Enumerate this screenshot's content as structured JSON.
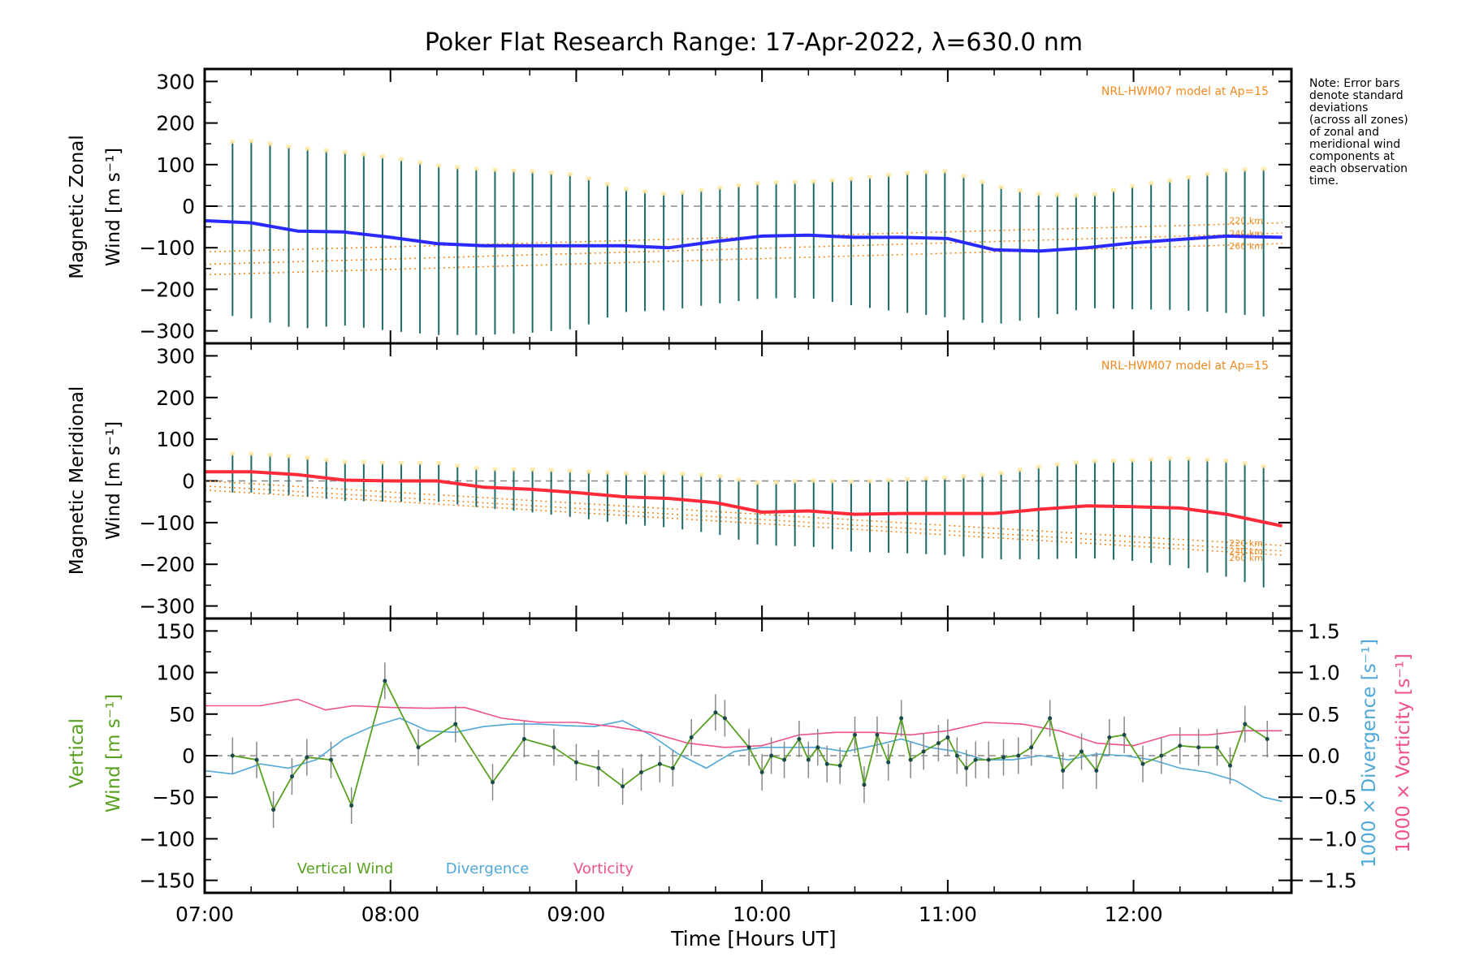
{
  "title": "Poker Flat Research Range: 17-Apr-2022, λ=630.0 nm",
  "note": [
    "Note: Error bars",
    "denote standard",
    "deviations",
    "(across all zones)",
    "of zonal and",
    "meridional wind",
    "components at",
    "each observation",
    "time."
  ],
  "xlabel": "Time [Hours UT]",
  "xticks": [
    "07:00",
    "08:00",
    "09:00",
    "10:00",
    "11:00",
    "12:00"
  ],
  "colors": {
    "zonal": "#2a2aff",
    "meridional": "#ff2a3a",
    "vertical": "#58a020",
    "divergence": "#50a8d8",
    "vorticity": "#f0508c",
    "model": "#f08a20",
    "error": "#1e6a6a"
  },
  "chart_data": [
    {
      "type": "line",
      "panel": "zonal",
      "ylabel_line1": "Magnetic Zonal",
      "ylabel_line2": "Wind [m s⁻¹]",
      "ylim": [
        -330,
        330
      ],
      "yticks": [
        "300",
        "200",
        "100",
        "0",
        "−100",
        "−200",
        "−300"
      ],
      "model_label": "NRL-HWM07 model at Ap=15",
      "model_alt_labels": [
        "220 km",
        "240 km",
        "260 km"
      ],
      "model_series": [
        {
          "name": "220 km",
          "x": [
            7.0,
            12.8
          ],
          "values": [
            -110,
            -40
          ]
        },
        {
          "name": "240 km",
          "x": [
            7.0,
            12.8
          ],
          "values": [
            -140,
            -65
          ]
        },
        {
          "name": "260 km",
          "x": [
            7.0,
            12.8
          ],
          "values": [
            -165,
            -90
          ]
        }
      ],
      "x": [
        7.0,
        7.25,
        7.5,
        7.75,
        8.0,
        8.25,
        8.5,
        8.75,
        9.0,
        9.25,
        9.5,
        9.75,
        10.0,
        10.25,
        10.5,
        10.75,
        11.0,
        11.25,
        11.5,
        11.75,
        12.0,
        12.25,
        12.5,
        12.8
      ],
      "values": [
        -35,
        -40,
        -60,
        -62,
        -75,
        -90,
        -95,
        -95,
        -95,
        -95,
        -100,
        -85,
        -72,
        -70,
        -75,
        -75,
        -78,
        -105,
        -108,
        -100,
        -88,
        -80,
        -72,
        -75
      ],
      "error": [
        220,
        230,
        235,
        225,
        225,
        220,
        215,
        210,
        200,
        160,
        150,
        150,
        150,
        150,
        165,
        180,
        190,
        180,
        160,
        145,
        160,
        170,
        185,
        195
      ],
      "error_x_range": [
        7.15,
        12.7
      ],
      "error_count": 56
    },
    {
      "type": "line",
      "panel": "meridional",
      "ylabel_line1": "Magnetic Meridional",
      "ylabel_line2": "Wind [m s⁻¹]",
      "ylim": [
        -330,
        330
      ],
      "yticks": [
        "300",
        "200",
        "100",
        "0",
        "−100",
        "−200",
        "−300"
      ],
      "model_label": "NRL-HWM07 model at Ap=15",
      "model_alt_labels": [
        "220 km",
        "240 km",
        "260 km"
      ],
      "model_series": [
        {
          "name": "220 km",
          "x": [
            7.0,
            12.8
          ],
          "values": [
            0,
            -155
          ]
        },
        {
          "name": "240 km",
          "x": [
            7.0,
            12.8
          ],
          "values": [
            -12,
            -168
          ]
        },
        {
          "name": "260 km",
          "x": [
            7.0,
            12.8
          ],
          "values": [
            -22,
            -178
          ]
        }
      ],
      "x": [
        7.0,
        7.25,
        7.5,
        7.75,
        8.0,
        8.25,
        8.5,
        8.75,
        9.0,
        9.25,
        9.5,
        9.75,
        10.0,
        10.25,
        10.5,
        10.75,
        11.0,
        11.25,
        11.5,
        11.75,
        12.0,
        12.25,
        12.5,
        12.8
      ],
      "values": [
        22,
        22,
        15,
        2,
        0,
        0,
        -15,
        -20,
        -28,
        -38,
        -42,
        -52,
        -75,
        -72,
        -80,
        -78,
        -78,
        -78,
        -68,
        -60,
        -62,
        -65,
        -80,
        -108
      ],
      "error": [
        50,
        50,
        50,
        50,
        50,
        50,
        50,
        55,
        60,
        65,
        70,
        75,
        80,
        85,
        90,
        95,
        100,
        110,
        120,
        125,
        130,
        140,
        150,
        160
      ],
      "error_x_range": [
        7.15,
        12.7
      ],
      "error_count": 56
    },
    {
      "type": "line",
      "panel": "vertical",
      "ylabel_line1": "Vertical",
      "ylabel_line2": "Wind [m s⁻¹]",
      "ylim": [
        -165,
        165
      ],
      "yticks": [
        "150",
        "100",
        "50",
        "0",
        "−50",
        "−100",
        "−150"
      ],
      "y2_ticks": [
        "1.5",
        "1.0",
        "0.5",
        "0.0",
        "−0.5",
        "−1.0",
        "−1.5"
      ],
      "y2lim": [
        -1.65,
        1.65
      ],
      "y2label_div": "1000 × Divergence [s⁻¹]",
      "y2label_vor": "1000 × Vorticity [s⁻¹]",
      "legend": [
        "Vertical Wind",
        "Divergence",
        "Vorticity"
      ],
      "series": [
        {
          "name": "Vertical Wind",
          "x": [
            7.15,
            7.28,
            7.37,
            7.47,
            7.55,
            7.68,
            7.79,
            7.97,
            8.15,
            8.35,
            8.55,
            8.72,
            8.88,
            9.0,
            9.12,
            9.25,
            9.35,
            9.45,
            9.52,
            9.62,
            9.75,
            9.8,
            9.93,
            10.0,
            10.05,
            10.12,
            10.2,
            10.25,
            10.3,
            10.35,
            10.42,
            10.5,
            10.55,
            10.62,
            10.68,
            10.75,
            10.8,
            10.87,
            10.95,
            11.0,
            11.05,
            11.1,
            11.15,
            11.22,
            11.3,
            11.38,
            11.45,
            11.55,
            11.62,
            11.72,
            11.8,
            11.87,
            11.95,
            12.05,
            12.15,
            12.25,
            12.35,
            12.45,
            12.52,
            12.6,
            12.72
          ],
          "values": [
            0,
            -5,
            -65,
            -25,
            -2,
            -5,
            -60,
            90,
            10,
            38,
            -32,
            20,
            10,
            -8,
            -15,
            -37,
            -20,
            -10,
            -15,
            22,
            52,
            45,
            10,
            -20,
            0,
            -5,
            20,
            -5,
            10,
            -10,
            -12,
            25,
            -35,
            25,
            -8,
            45,
            -5,
            5,
            15,
            22,
            0,
            -15,
            -5,
            -5,
            -2,
            0,
            10,
            45,
            -18,
            5,
            -18,
            22,
            25,
            -10,
            0,
            12,
            10,
            10,
            -12,
            38,
            20
          ]
        },
        {
          "name": "Divergence",
          "x": [
            7.0,
            7.15,
            7.3,
            7.45,
            7.6,
            7.75,
            7.9,
            8.05,
            8.2,
            8.35,
            8.5,
            8.65,
            8.8,
            8.95,
            9.1,
            9.25,
            9.4,
            9.55,
            9.7,
            9.85,
            10.0,
            10.15,
            10.3,
            10.45,
            10.6,
            10.75,
            10.9,
            11.05,
            11.2,
            11.35,
            11.5,
            11.65,
            11.8,
            11.95,
            12.1,
            12.25,
            12.4,
            12.55,
            12.7,
            12.8
          ],
          "values": [
            -0.18,
            -0.22,
            -0.1,
            -0.15,
            -0.05,
            0.2,
            0.35,
            0.45,
            0.3,
            0.28,
            0.35,
            0.38,
            0.38,
            0.36,
            0.35,
            0.42,
            0.25,
            0.02,
            -0.15,
            0.05,
            0.1,
            0.1,
            0.1,
            0.05,
            0.12,
            0.2,
            0.1,
            0.05,
            -0.05,
            -0.05,
            0.0,
            -0.05,
            0.02,
            0.0,
            -0.05,
            -0.15,
            -0.2,
            -0.3,
            -0.5,
            -0.55
          ]
        },
        {
          "name": "Vorticity",
          "x": [
            7.0,
            7.15,
            7.3,
            7.5,
            7.65,
            7.8,
            8.0,
            8.2,
            8.4,
            8.6,
            8.8,
            9.0,
            9.2,
            9.4,
            9.6,
            9.8,
            10.0,
            10.2,
            10.4,
            10.6,
            10.8,
            11.0,
            11.2,
            11.4,
            11.6,
            11.8,
            12.0,
            12.2,
            12.4,
            12.6,
            12.8
          ],
          "values": [
            0.6,
            0.6,
            0.6,
            0.68,
            0.55,
            0.6,
            0.58,
            0.57,
            0.58,
            0.45,
            0.4,
            0.4,
            0.35,
            0.28,
            0.15,
            0.1,
            0.12,
            0.25,
            0.28,
            0.28,
            0.25,
            0.3,
            0.4,
            0.38,
            0.3,
            0.15,
            0.12,
            0.25,
            0.25,
            0.3,
            0.3
          ]
        }
      ]
    }
  ]
}
